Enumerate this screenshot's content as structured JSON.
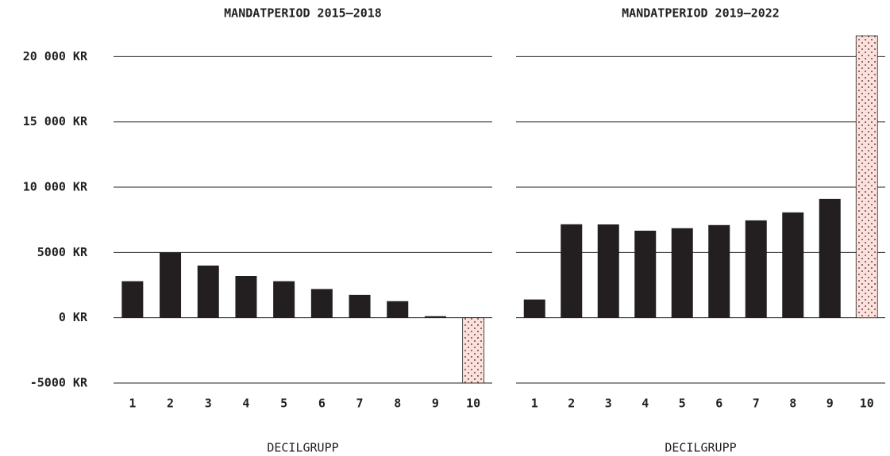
{
  "chart_data": [
    {
      "type": "bar",
      "title": "MANDATPERIOD 2015–2018",
      "xlabel": "DECILGRUPP",
      "categories": [
        "1",
        "2",
        "3",
        "4",
        "5",
        "6",
        "7",
        "8",
        "9",
        "10"
      ],
      "values": [
        2800,
        5000,
        4000,
        3200,
        2800,
        2200,
        1750,
        1270,
        120,
        -5000
      ],
      "colors": [
        "#231f20",
        "#231f20",
        "#231f20",
        "#231f20",
        "#231f20",
        "#231f20",
        "#231f20",
        "#231f20",
        "#231f20",
        "#fde0dc"
      ],
      "dotted": [
        false,
        false,
        false,
        false,
        false,
        false,
        false,
        false,
        false,
        true
      ],
      "ylim": [
        -5000,
        22000
      ],
      "yticks": [
        {
          "value": -5000,
          "label": "-5000 KR"
        },
        {
          "value": 0,
          "label": "0 KR"
        },
        {
          "value": 5000,
          "label": "5000 KR"
        },
        {
          "value": 10000,
          "label": "10 000 KR"
        },
        {
          "value": 15000,
          "label": "15 000 KR"
        },
        {
          "value": 20000,
          "label": "20 000 KR"
        }
      ],
      "grid": true
    },
    {
      "type": "bar",
      "title": "MANDATPERIOD 2019–2022",
      "xlabel": "DECILGRUPP",
      "categories": [
        "1",
        "2",
        "3",
        "4",
        "5",
        "6",
        "7",
        "8",
        "9",
        "10"
      ],
      "values": [
        1400,
        7160,
        7150,
        6670,
        6860,
        7100,
        7460,
        8070,
        9100,
        21600
      ],
      "colors": [
        "#231f20",
        "#231f20",
        "#231f20",
        "#231f20",
        "#231f20",
        "#231f20",
        "#231f20",
        "#231f20",
        "#231f20",
        "#fde0dc"
      ],
      "dotted": [
        false,
        false,
        false,
        false,
        false,
        false,
        false,
        false,
        false,
        true
      ],
      "ylim": [
        -5000,
        22000
      ],
      "yticks": [
        -5000,
        0,
        5000,
        10000,
        15000,
        20000
      ],
      "grid": true
    }
  ]
}
